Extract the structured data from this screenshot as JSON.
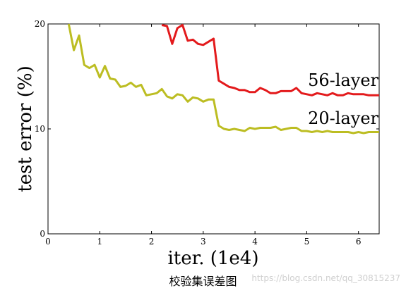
{
  "chart_data": {
    "type": "line",
    "xlabel": "iter. (1e4)",
    "ylabel": "test error (%)",
    "xlim": [
      0,
      6.4
    ],
    "ylim": [
      0,
      20
    ],
    "xticks": [
      0,
      1,
      2,
      3,
      4,
      5,
      6
    ],
    "yticks": [
      0,
      10,
      20
    ],
    "grid": false,
    "series": [
      {
        "name": "56-layer",
        "color": "#e31a1c",
        "x": [
          2.2,
          2.3,
          2.4,
          2.5,
          2.6,
          2.7,
          2.8,
          2.9,
          3.0,
          3.1,
          3.2,
          3.3,
          3.4,
          3.5,
          3.6,
          3.7,
          3.8,
          3.9,
          4.0,
          4.1,
          4.2,
          4.3,
          4.4,
          4.5,
          4.6,
          4.7,
          4.8,
          4.9,
          5.0,
          5.1,
          5.2,
          5.3,
          5.4,
          5.5,
          5.6,
          5.7,
          5.8,
          5.9,
          6.0,
          6.1,
          6.2,
          6.3,
          6.4
        ],
        "values": [
          19.9,
          19.8,
          18.1,
          19.6,
          19.9,
          18.4,
          18.5,
          18.1,
          18.0,
          18.3,
          18.6,
          14.6,
          14.3,
          14.0,
          13.9,
          13.7,
          13.7,
          13.5,
          13.5,
          13.9,
          13.7,
          13.4,
          13.4,
          13.6,
          13.6,
          13.6,
          13.9,
          13.4,
          13.3,
          13.2,
          13.4,
          13.3,
          13.2,
          13.4,
          13.2,
          13.2,
          13.4,
          13.3,
          13.3,
          13.3,
          13.2,
          13.2,
          13.2
        ]
      },
      {
        "name": "20-layer",
        "color": "#bcbd22",
        "x": [
          0.4,
          0.5,
          0.6,
          0.7,
          0.8,
          0.9,
          1.0,
          1.1,
          1.2,
          1.3,
          1.4,
          1.5,
          1.6,
          1.7,
          1.8,
          1.9,
          2.0,
          2.1,
          2.2,
          2.3,
          2.4,
          2.5,
          2.6,
          2.7,
          2.8,
          2.9,
          3.0,
          3.1,
          3.2,
          3.3,
          3.4,
          3.5,
          3.6,
          3.7,
          3.8,
          3.9,
          4.0,
          4.1,
          4.2,
          4.3,
          4.4,
          4.5,
          4.6,
          4.7,
          4.8,
          4.9,
          5.0,
          5.1,
          5.2,
          5.3,
          5.4,
          5.5,
          5.6,
          5.7,
          5.8,
          5.9,
          6.0,
          6.1,
          6.2,
          6.3,
          6.4
        ],
        "values": [
          20.0,
          17.5,
          18.9,
          16.1,
          15.8,
          16.1,
          14.9,
          16.0,
          14.8,
          14.7,
          14.0,
          14.1,
          14.4,
          14.0,
          14.2,
          13.2,
          13.3,
          13.4,
          13.8,
          13.1,
          12.9,
          13.3,
          13.2,
          12.6,
          13.0,
          12.9,
          12.6,
          12.8,
          12.8,
          10.3,
          10.0,
          9.9,
          10.0,
          9.9,
          9.8,
          10.1,
          10.0,
          10.1,
          10.1,
          10.1,
          10.2,
          9.9,
          10.0,
          10.1,
          10.1,
          9.8,
          9.8,
          9.7,
          9.8,
          9.7,
          9.8,
          9.7,
          9.7,
          9.7,
          9.7,
          9.6,
          9.7,
          9.6,
          9.7,
          9.7,
          9.7
        ]
      }
    ]
  },
  "caption": "校验集误差图",
  "watermark": "https://blog.csdn.net/qq_30815237"
}
